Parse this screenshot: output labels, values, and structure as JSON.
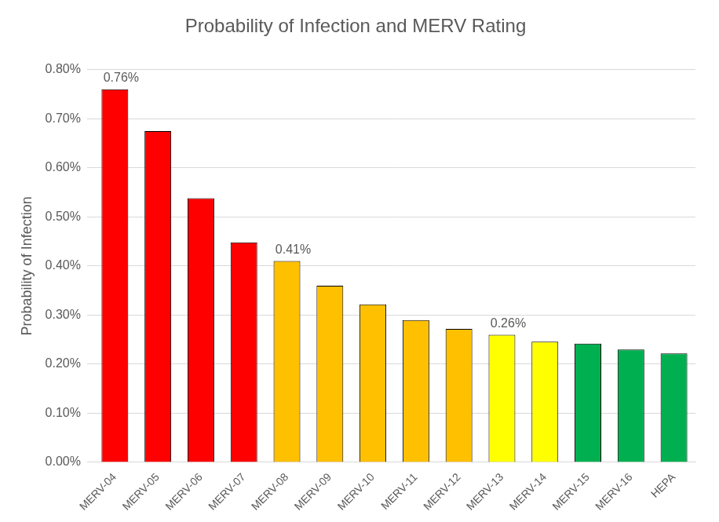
{
  "chart_data": {
    "type": "bar",
    "title": "Probability of Infection and MERV Rating",
    "y_label": "Probability of Infection",
    "categories": [
      "MERV-04",
      "MERV-05",
      "MERV-06",
      "MERV-07",
      "MERV-08",
      "MERV-09",
      "MERV-10",
      "MERV-11",
      "MERV-12",
      "MERV-13",
      "MERV-14",
      "MERV-15",
      "MERV-16",
      "HEPA"
    ],
    "values": [
      0.76,
      0.675,
      0.538,
      0.448,
      0.41,
      0.36,
      0.322,
      0.29,
      0.272,
      0.26,
      0.246,
      0.242,
      0.23,
      0.222
    ],
    "value_labels": [
      "0.76%",
      null,
      null,
      null,
      "0.41%",
      null,
      null,
      null,
      null,
      "0.26%",
      null,
      null,
      null,
      null
    ],
    "data_labels": true,
    "colors": [
      "#FF0000",
      "#FF0000",
      "#FF0000",
      "#FF0000",
      "#FFC000",
      "#FFC000",
      "#FFC000",
      "#FFC000",
      "#FFC000",
      "#FFFF00",
      "#FFFF00",
      "#00B050",
      "#00B050",
      "#00B050"
    ],
    "ylim": [
      0,
      0.8
    ],
    "yticks": [
      {
        "value": 0,
        "label": "0.00%"
      },
      {
        "value": 0.1,
        "label": "0.10%"
      },
      {
        "value": 0.2,
        "label": "0.20%"
      },
      {
        "value": 0.3,
        "label": "0.30%"
      },
      {
        "value": 0.4,
        "label": "0.40%"
      },
      {
        "value": 0.5,
        "label": "0.50%"
      },
      {
        "value": 0.6,
        "label": "0.60%"
      },
      {
        "value": 0.7,
        "label": "0.70%"
      },
      {
        "value": 0.8,
        "label": "0.80%"
      }
    ],
    "grid": true
  }
}
